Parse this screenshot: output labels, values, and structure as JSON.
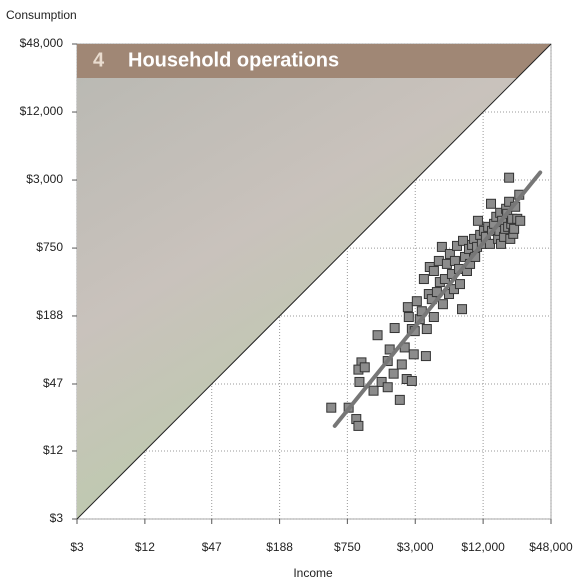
{
  "chart_data": {
    "type": "scatter",
    "number": "4",
    "title": "Household operations",
    "y_label": "Consumption",
    "x_label": "Income",
    "xscale": "log",
    "yscale": "log",
    "grid": true,
    "xlim": [
      3,
      48000
    ],
    "ylim": [
      3,
      48000
    ],
    "xticks": [
      {
        "value": 3,
        "label": "$3"
      },
      {
        "value": 12,
        "label": "$12"
      },
      {
        "value": 47,
        "label": "$47"
      },
      {
        "value": 188,
        "label": "$188"
      },
      {
        "value": 750,
        "label": "$750"
      },
      {
        "value": 3000,
        "label": "$3,000"
      },
      {
        "value": 12000,
        "label": "$12,000"
      },
      {
        "value": 48000,
        "label": "$48,000"
      }
    ],
    "yticks": [
      {
        "value": 3,
        "label": "$3"
      },
      {
        "value": 12,
        "label": "$12"
      },
      {
        "value": 47,
        "label": "$47"
      },
      {
        "value": 188,
        "label": "$188"
      },
      {
        "value": 750,
        "label": "$750"
      },
      {
        "value": 3000,
        "label": "$3,000"
      },
      {
        "value": 12000,
        "label": "$12,000"
      },
      {
        "value": 48000,
        "label": "$48,000"
      }
    ],
    "color": "#8c8c8c",
    "x": [
      540,
      770,
      900,
      940,
      1000,
      940,
      1070,
      960,
      1280,
      1390,
      1510,
      1710,
      1780,
      1710,
      1930,
      1970,
      2190,
      2280,
      2420,
      2520,
      2580,
      2630,
      2800,
      2800,
      2910,
      2970,
      3100,
      3290,
      3430,
      3580,
      3730,
      3800,
      3960,
      4040,
      4210,
      4390,
      4390,
      4670,
      4860,
      4960,
      5170,
      5280,
      5500,
      5730,
      5980,
      6090,
      6350,
      6620,
      6750,
      7040,
      7330,
      7480,
      7800,
      7960,
      8290,
      8630,
      8990,
      9190,
      9570,
      9970,
      10200,
      10600,
      10800,
      11300,
      11700,
      12200,
      12700,
      13300,
      13800,
      14100,
      14400,
      15000,
      15700,
      16300,
      16700,
      17000,
      17300,
      17700,
      18400,
      18800,
      19200,
      19600,
      20000,
      20400,
      20900,
      21300,
      21700,
      22200,
      22600,
      23100,
      24100,
      25100,
      25600,
      20400
    ],
    "values": [
      29,
      29,
      23,
      20,
      73,
      63,
      66,
      49,
      41,
      127,
      49,
      75,
      95,
      44,
      58,
      147,
      34,
      70,
      99,
      52,
      225,
      184,
      144,
      50,
      86,
      138,
      254,
      176,
      207,
      399,
      83,
      144,
      294,
      510,
      265,
      470,
      184,
      306,
      577,
      375,
      768,
      239,
      399,
      543,
      294,
      665,
      442,
      325,
      577,
      784,
      490,
      360,
      216,
      869,
      626,
      470,
      737,
      543,
      800,
      904,
      626,
      768,
      1307,
      981,
      817,
      1065,
      942,
      1156,
      817,
      1850,
      1065,
      1229,
      1418,
      904,
      1065,
      1539,
      817,
      1307,
      942,
      1110,
      1670,
      1508,
      1156,
      1927,
      904,
      1229,
      1361,
      1002,
      1110,
      1740,
      1361,
      2224,
      1307,
      3148
    ],
    "trend": {
      "x": [
        580,
        38500
      ],
      "values": [
        20,
        3500
      ],
      "color": "#777777"
    }
  }
}
